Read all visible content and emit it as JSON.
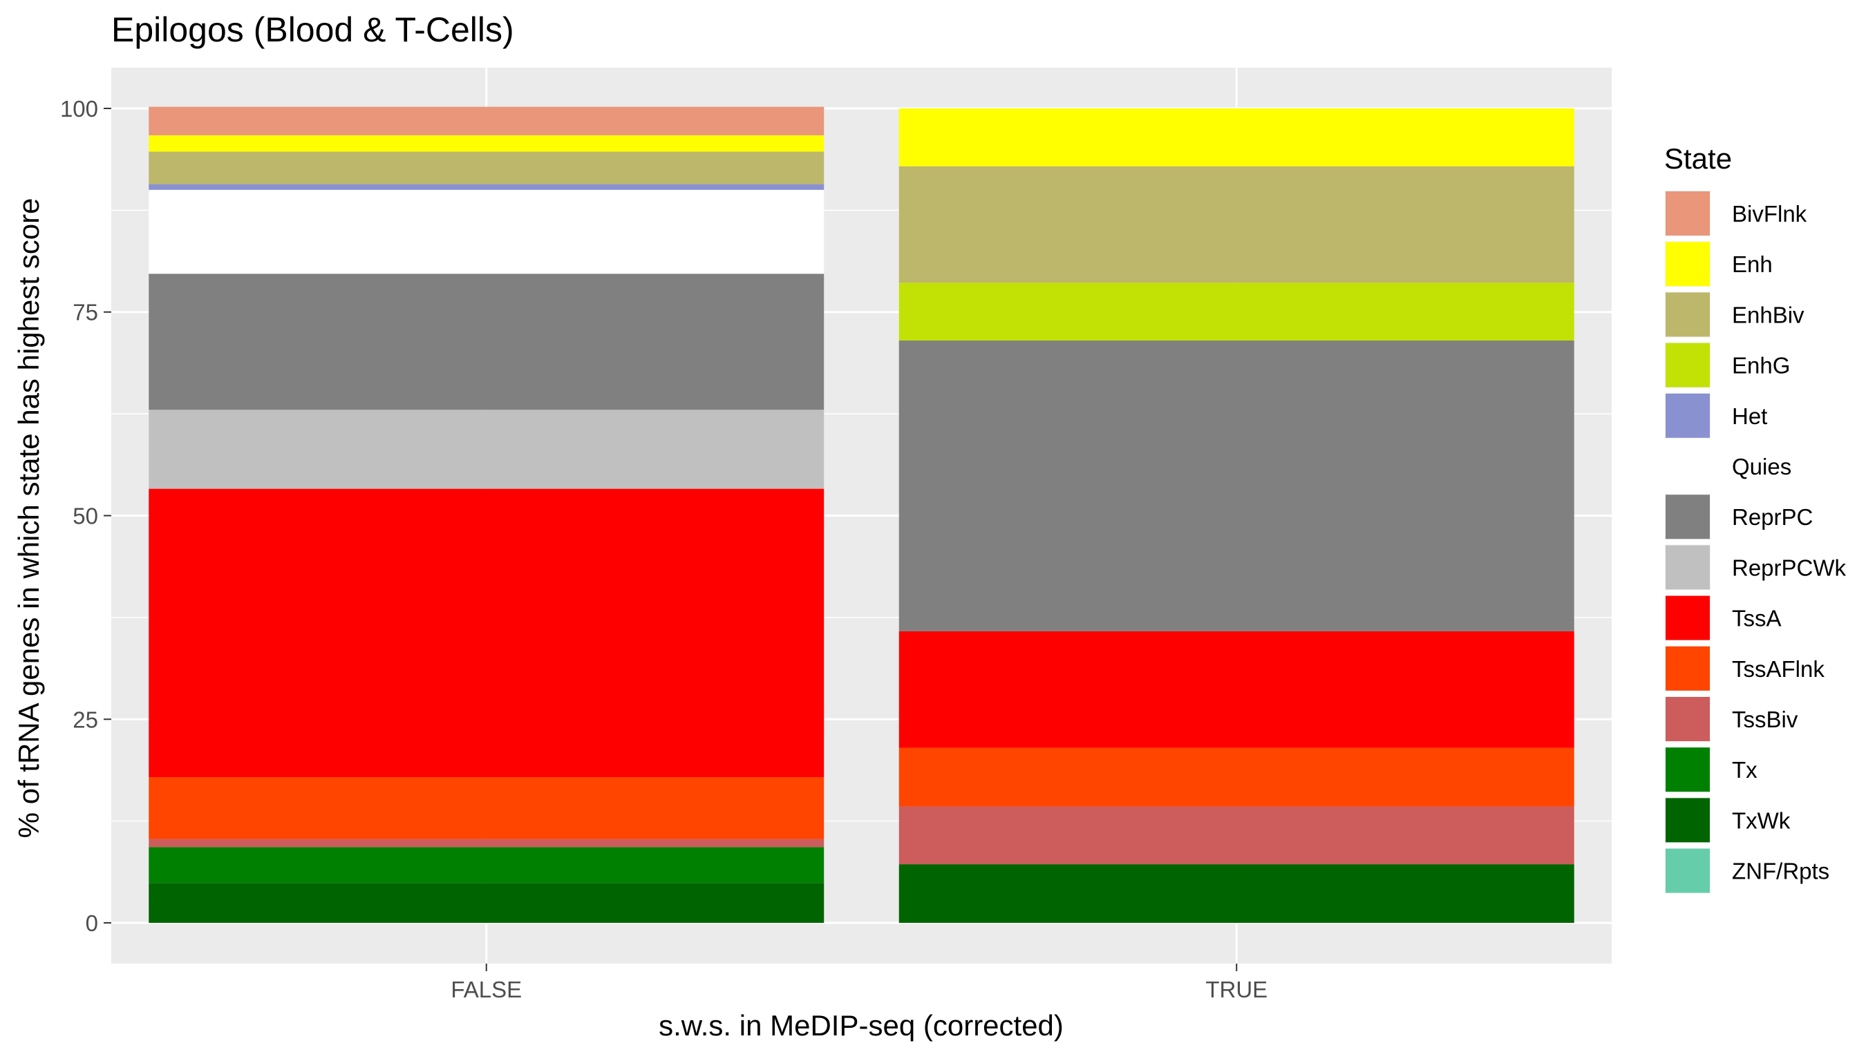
{
  "chart_data": {
    "type": "bar",
    "stacked": true,
    "title": "Epilogos (Blood & T-Cells)",
    "xlabel": "s.w.s. in MeDIP-seq (corrected)",
    "ylabel": "% of tRNA genes in which state has highest score",
    "categories": [
      "FALSE",
      "TRUE"
    ],
    "ylim": [
      -5,
      105
    ],
    "yticks": [
      "0",
      "25",
      "50",
      "75",
      "100"
    ],
    "ytick_values": [
      0,
      25,
      50,
      75,
      100
    ],
    "grid": true,
    "background": "#ebebeb",
    "legend": {
      "title": "State",
      "placement": "right"
    },
    "series": [
      {
        "name": "BivFlnk",
        "color": "#E9967A",
        "values": [
          3.5,
          0
        ]
      },
      {
        "name": "Enh",
        "color": "#FFFF00",
        "values": [
          2.0,
          7.1
        ]
      },
      {
        "name": "EnhBiv",
        "color": "#BDB76B",
        "values": [
          4.0,
          14.3
        ]
      },
      {
        "name": "EnhG",
        "color": "#C2E105",
        "values": [
          0,
          7.1
        ]
      },
      {
        "name": "Het",
        "color": "#8A91D0",
        "values": [
          0.7,
          0
        ]
      },
      {
        "name": "Quies",
        "color": "#FFFFFF",
        "values": [
          10.3,
          0
        ]
      },
      {
        "name": "ReprPC",
        "color": "#808080",
        "values": [
          16.7,
          35.7
        ]
      },
      {
        "name": "ReprPCWk",
        "color": "#C0C0C0",
        "values": [
          9.7,
          0
        ]
      },
      {
        "name": "TssA",
        "color": "#FF0000",
        "values": [
          35.4,
          14.3
        ]
      },
      {
        "name": "TssAFlnk",
        "color": "#FF4500",
        "values": [
          7.6,
          7.2
        ]
      },
      {
        "name": "TssBiv",
        "color": "#CD5C5C",
        "values": [
          1.0,
          7.1
        ]
      },
      {
        "name": "Tx",
        "color": "#008000",
        "values": [
          4.4,
          0
        ]
      },
      {
        "name": "TxWk",
        "color": "#006400",
        "values": [
          4.9,
          7.2
        ]
      },
      {
        "name": "ZNF/Rpts",
        "color": "#66CDAA",
        "values": [
          0,
          0
        ]
      }
    ]
  }
}
